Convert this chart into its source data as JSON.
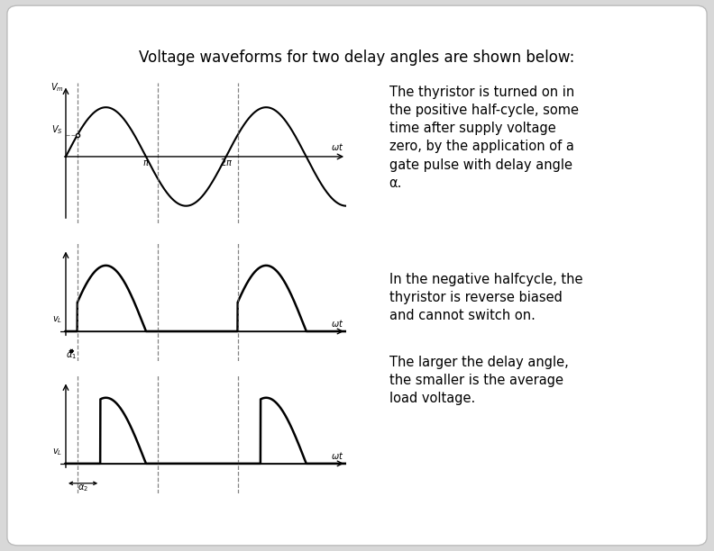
{
  "title": "Voltage waveforms for two delay angles are shown below:",
  "title_fontsize": 12,
  "background_color": "#d8d8d8",
  "card_color": "#ffffff",
  "text_color": "#000000",
  "alpha1": 0.45,
  "alpha2": 1.35,
  "text_lines_1": [
    "The thyristor is turned on in",
    "the positive half-cycle, some",
    "time after supply voltage",
    "zero, by the application of a",
    "gate pulse with delay angle",
    "α."
  ],
  "text_lines_2": [
    "In the negative halfcycle, the",
    "thyristor is reverse biased",
    "and cannot switch on."
  ],
  "text_lines_3": [
    "The larger the delay angle,",
    "the smaller is the average",
    "load voltage."
  ]
}
